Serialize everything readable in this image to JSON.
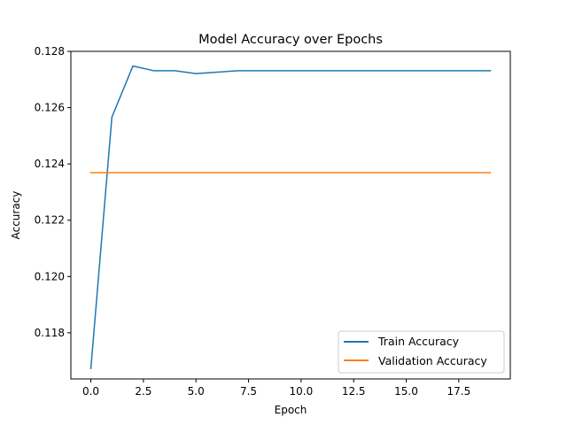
{
  "chart_data": {
    "type": "line",
    "title": "Model Accuracy over Epochs",
    "xlabel": "Epoch",
    "ylabel": "Accuracy",
    "xlim": [
      -0.95,
      19.95
    ],
    "ylim": [
      0.11636,
      0.128
    ],
    "xticks": [
      0.0,
      2.5,
      5.0,
      7.5,
      10.0,
      12.5,
      15.0,
      17.5
    ],
    "xtick_labels": [
      "0.0",
      "2.5",
      "5.0",
      "7.5",
      "10.0",
      "12.5",
      "15.0",
      "17.5"
    ],
    "yticks": [
      0.118,
      0.12,
      0.122,
      0.124,
      0.126,
      0.128
    ],
    "ytick_labels": [
      "0.118",
      "0.120",
      "0.122",
      "0.124",
      "0.126",
      "0.128"
    ],
    "grid": false,
    "legend_position": "lower-right",
    "x": [
      0,
      1,
      2,
      3,
      4,
      5,
      6,
      7,
      8,
      9,
      10,
      11,
      12,
      13,
      14,
      15,
      16,
      17,
      18,
      19
    ],
    "series": [
      {
        "name": "Train Accuracy",
        "color": "#1f77b4",
        "values": [
          0.11673,
          0.12566,
          0.12748,
          0.12731,
          0.12731,
          0.12721,
          0.12726,
          0.12731,
          0.12731,
          0.12731,
          0.12731,
          0.12731,
          0.12731,
          0.12731,
          0.12731,
          0.12731,
          0.12731,
          0.12731,
          0.12731,
          0.12731
        ]
      },
      {
        "name": "Validation Accuracy",
        "color": "#ff7f0e",
        "values": [
          0.12369,
          0.12369,
          0.12369,
          0.12369,
          0.12369,
          0.12369,
          0.12369,
          0.12369,
          0.12369,
          0.12369,
          0.12369,
          0.12369,
          0.12369,
          0.12369,
          0.12369,
          0.12369,
          0.12369,
          0.12369,
          0.12369,
          0.12369
        ]
      }
    ]
  }
}
